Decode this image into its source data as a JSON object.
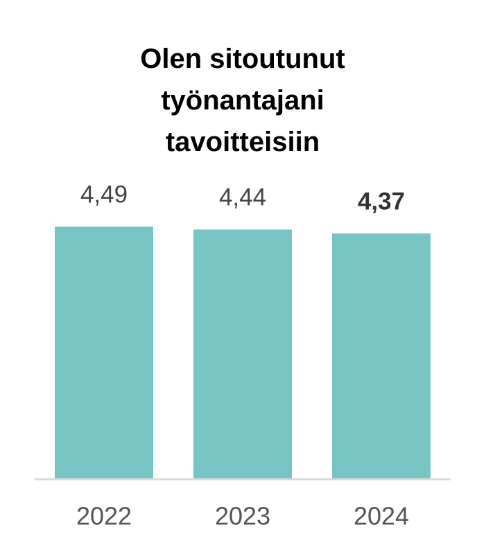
{
  "chart_data": {
    "type": "bar",
    "title": "Olen sitoutunut työnantajani tavoitteisiin",
    "categories": [
      "2022",
      "2023",
      "2024"
    ],
    "values": [
      4.49,
      4.44,
      4.37
    ],
    "value_labels": [
      "4,49",
      "4,44",
      "4,37"
    ],
    "highlight_index": 2,
    "color": "#76c5c4",
    "ylim": [
      0,
      5
    ]
  }
}
